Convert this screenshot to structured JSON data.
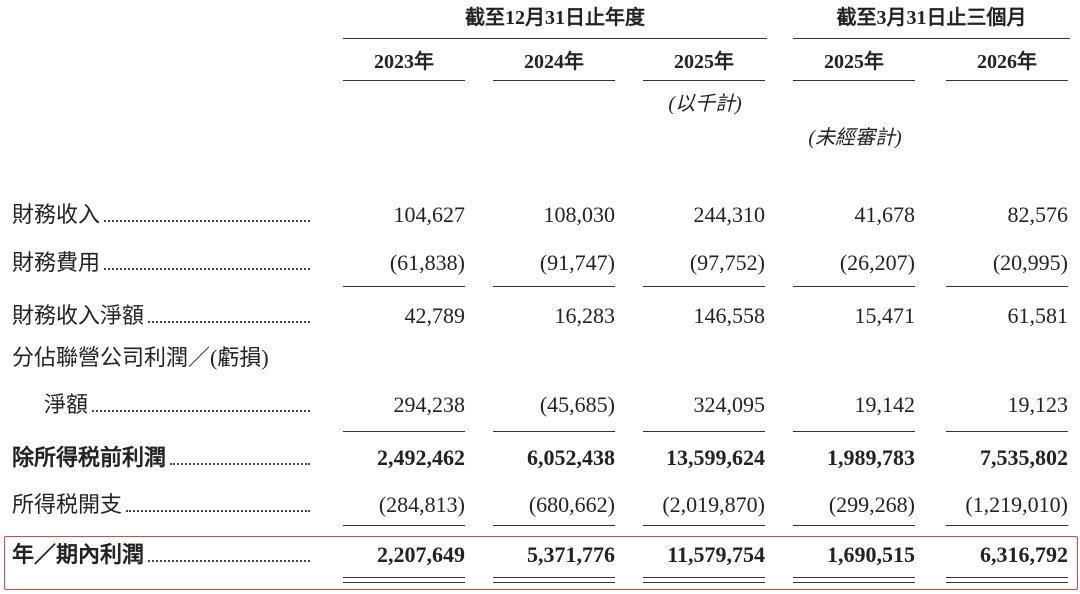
{
  "header": {
    "groups": [
      "截至12月31日止年度",
      "截至3月31日止三個月"
    ],
    "years": [
      "2023年",
      "2024年",
      "2025年",
      "2025年",
      "2026年"
    ],
    "unit_note": "(以千計)",
    "audit_note": "(未經審計)"
  },
  "table": {
    "rows": [
      {
        "label": "財務收入",
        "values": [
          "104,627",
          "108,030",
          "244,310",
          "41,678",
          "82,576"
        ]
      },
      {
        "label": "財務費用",
        "values": [
          "(61,838)",
          "(91,747)",
          "(97,752)",
          "(26,207)",
          "(20,995)"
        ]
      },
      {
        "label": "財務收入淨額",
        "values": [
          "42,789",
          "16,283",
          "146,558",
          "15,471",
          "61,581"
        ]
      },
      {
        "label": "分佔聯營公司利潤／(虧損)",
        "label_cont": "淨額",
        "values": [
          "294,238",
          "(45,685)",
          "324,095",
          "19,142",
          "19,123"
        ]
      },
      {
        "label": "除所得税前利潤",
        "bold": true,
        "values": [
          "2,492,462",
          "6,052,438",
          "13,599,624",
          "1,989,783",
          "7,535,802"
        ]
      },
      {
        "label": "所得税開支",
        "values": [
          "(284,813)",
          "(680,662)",
          "(2,019,870)",
          "(299,268)",
          "(1,219,010)"
        ]
      },
      {
        "label": "年／期內利潤",
        "bold": true,
        "values": [
          "2,207,649",
          "5,371,776",
          "11,579,754",
          "1,690,515",
          "6,316,792"
        ]
      }
    ]
  }
}
